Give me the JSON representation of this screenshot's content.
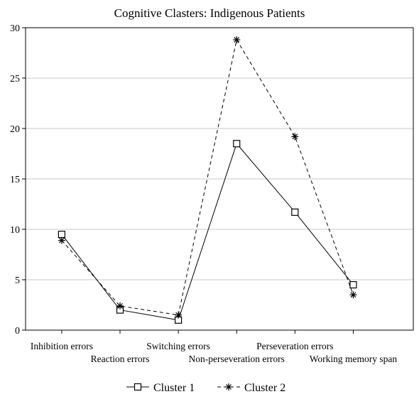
{
  "chart_data": {
    "type": "line",
    "title": "Cognitive Clasters: Indigenous Patients",
    "xlabel": "",
    "ylabel": "",
    "categories": [
      "Inhibition errors",
      "Reaction errors",
      "Switching errors",
      "Non-perseveration errors",
      "Perseveration errors",
      "Working memory span"
    ],
    "ylim": [
      0,
      30
    ],
    "yticks": [
      "0",
      "5",
      "10",
      "15",
      "20",
      "25",
      "30"
    ],
    "grid": true,
    "legend_position": "bottom-center",
    "series": [
      {
        "name": "Cluster  1",
        "values": [
          9.5,
          2.0,
          1.0,
          18.5,
          11.7,
          4.5
        ],
        "marker": "open-square",
        "line_style": "solid",
        "color": "#000000"
      },
      {
        "name": "Cluster  2",
        "values": [
          8.9,
          2.4,
          1.5,
          28.8,
          19.2,
          3.5
        ],
        "marker": "asterisk",
        "line_style": "dashed",
        "color": "#000000"
      }
    ]
  }
}
